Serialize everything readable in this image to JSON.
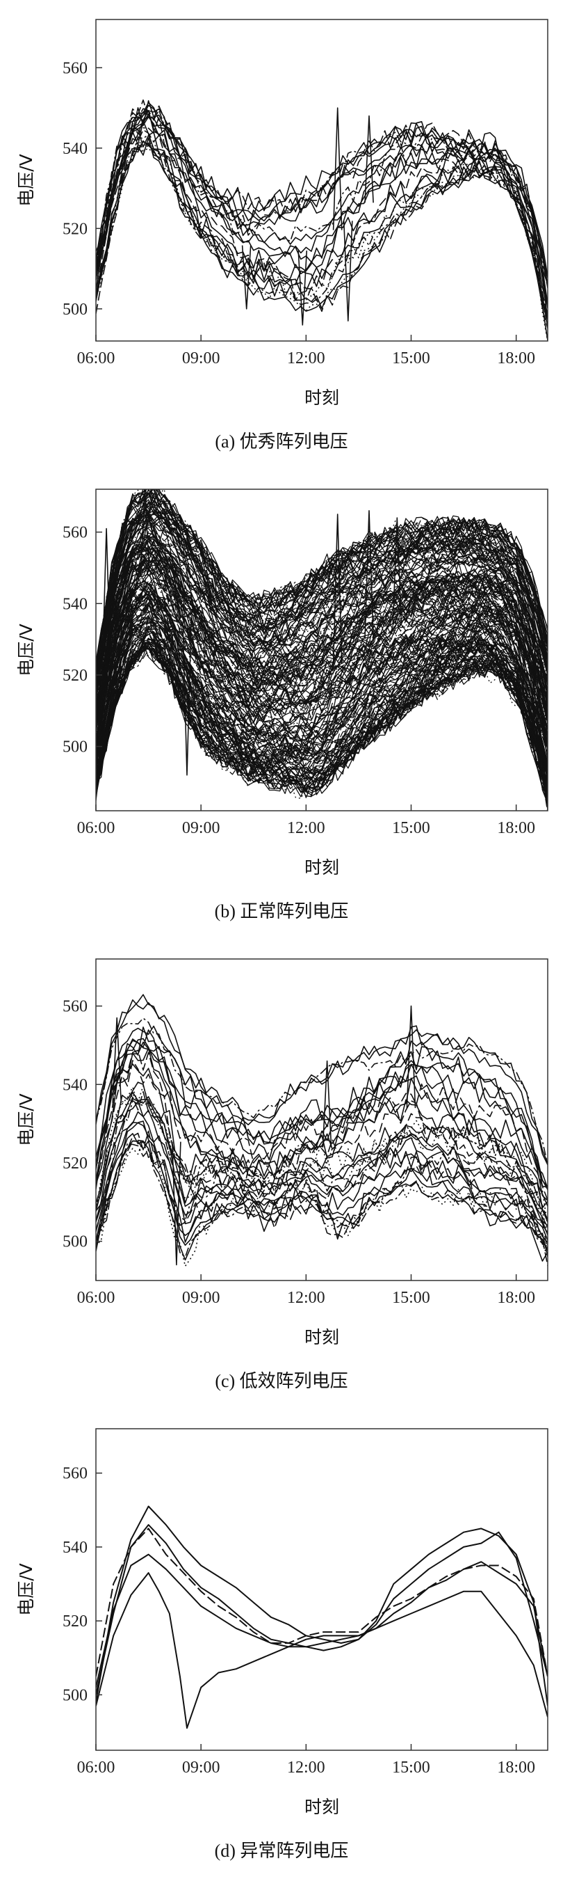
{
  "chart_data": [
    {
      "type": "line",
      "caption": "(a) 优秀阵列电压",
      "xlabel": "时刻",
      "ylabel": "电压/V",
      "xlim": [
        6.0,
        18.9
      ],
      "ylim": [
        492,
        572
      ],
      "xticks": [
        "06:00",
        "09:00",
        "12:00",
        "15:00",
        "18:00"
      ],
      "yticks": [
        "500",
        "520",
        "540",
        "560"
      ],
      "n_series": 22,
      "envelope": {
        "x": [
          6.0,
          6.5,
          7.0,
          7.5,
          8.0,
          8.5,
          9.0,
          9.5,
          10.0,
          10.5,
          11.0,
          11.5,
          12.0,
          12.5,
          13.0,
          13.5,
          14.0,
          14.5,
          15.0,
          15.5,
          16.0,
          16.5,
          17.0,
          17.5,
          18.0,
          18.5,
          18.9
        ],
        "upper": [
          512,
          536,
          547,
          550,
          546,
          540,
          533,
          530,
          527,
          526,
          528,
          529,
          531,
          533,
          536,
          538,
          541,
          543,
          544,
          544,
          543,
          542,
          541,
          540,
          536,
          525,
          510
        ],
        "lower": [
          501,
          522,
          538,
          541,
          535,
          524,
          517,
          512,
          507,
          504,
          502,
          500,
          498,
          499,
          505,
          510,
          515,
          520,
          524,
          528,
          530,
          532,
          534,
          532,
          526,
          512,
          492
        ]
      },
      "spikes": [
        {
          "x": 11.9,
          "y": 496
        },
        {
          "x": 12.9,
          "y": 550
        },
        {
          "x": 13.8,
          "y": 548
        },
        {
          "x": 10.3,
          "y": 500
        },
        {
          "x": 13.2,
          "y": 497
        }
      ]
    },
    {
      "type": "line",
      "caption": "(b) 正常阵列电压",
      "xlabel": "时刻",
      "ylabel": "电压/V",
      "xlim": [
        6.0,
        18.9
      ],
      "ylim": [
        482,
        572
      ],
      "xticks": [
        "06:00",
        "09:00",
        "12:00",
        "15:00",
        "18:00"
      ],
      "yticks": [
        "500",
        "520",
        "540",
        "560"
      ],
      "n_series": 180,
      "envelope": {
        "x": [
          6.0,
          6.5,
          7.0,
          7.5,
          8.0,
          8.5,
          9.0,
          9.5,
          10.0,
          10.5,
          11.0,
          11.5,
          12.0,
          12.5,
          13.0,
          13.5,
          14.0,
          14.5,
          15.0,
          15.5,
          16.0,
          16.5,
          17.0,
          17.5,
          18.0,
          18.5,
          18.9
        ],
        "upper": [
          522,
          552,
          568,
          572,
          569,
          563,
          556,
          548,
          543,
          540,
          541,
          543,
          546,
          550,
          553,
          556,
          558,
          560,
          561,
          562,
          562,
          562,
          562,
          560,
          556,
          545,
          530
        ],
        "lower": [
          488,
          510,
          524,
          528,
          522,
          510,
          502,
          497,
          494,
          491,
          490,
          489,
          488,
          490,
          495,
          500,
          505,
          508,
          512,
          515,
          518,
          520,
          522,
          520,
          514,
          500,
          484
        ]
      },
      "spikes": [
        {
          "x": 6.3,
          "y": 561
        },
        {
          "x": 8.6,
          "y": 492
        },
        {
          "x": 12.9,
          "y": 565
        },
        {
          "x": 13.8,
          "y": 566
        },
        {
          "x": 14.6,
          "y": 564
        },
        {
          "x": 7.4,
          "y": 572
        }
      ]
    },
    {
      "type": "line",
      "caption": "(c) 低效阵列电压",
      "xlabel": "时刻",
      "ylabel": "电压/V",
      "xlim": [
        6.0,
        18.9
      ],
      "ylim": [
        490,
        572
      ],
      "xticks": [
        "06:00",
        "09:00",
        "12:00",
        "15:00",
        "18:00"
      ],
      "yticks": [
        "500",
        "520",
        "540",
        "560"
      ],
      "n_series": 30,
      "envelope": {
        "x": [
          6.0,
          6.5,
          7.0,
          7.5,
          8.0,
          8.5,
          9.0,
          9.5,
          10.0,
          10.5,
          11.0,
          11.5,
          12.0,
          12.5,
          13.0,
          13.5,
          14.0,
          14.5,
          15.0,
          15.5,
          16.0,
          16.5,
          17.0,
          17.5,
          18.0,
          18.5,
          18.9
        ],
        "upper": [
          530,
          552,
          560,
          561,
          555,
          545,
          540,
          536,
          534,
          532,
          534,
          538,
          541,
          543,
          545,
          547,
          548,
          550,
          553,
          552,
          551,
          550,
          549,
          548,
          544,
          532,
          520
        ],
        "lower": [
          497,
          515,
          525,
          522,
          512,
          495,
          503,
          507,
          508,
          507,
          505,
          508,
          510,
          505,
          503,
          506,
          510,
          512,
          515,
          512,
          512,
          510,
          507,
          506,
          505,
          502,
          496
        ]
      },
      "spikes": [
        {
          "x": 8.3,
          "y": 494
        },
        {
          "x": 15.0,
          "y": 560
        },
        {
          "x": 12.6,
          "y": 546
        },
        {
          "x": 6.6,
          "y": 557
        }
      ]
    },
    {
      "type": "line",
      "caption": "(d) 异常阵列电压",
      "xlabel": "时刻",
      "ylabel": "电压/V",
      "xlim": [
        6.0,
        18.9
      ],
      "ylim": [
        485,
        572
      ],
      "xticks": [
        "06:00",
        "09:00",
        "12:00",
        "15:00",
        "18:00"
      ],
      "yticks": [
        "500",
        "520",
        "540",
        "560"
      ],
      "series": [
        {
          "style": "solid",
          "x": [
            6.0,
            6.5,
            7.0,
            7.5,
            8.0,
            8.5,
            9.0,
            9.5,
            10.0,
            10.5,
            11.0,
            11.5,
            12.0,
            12.5,
            13.0,
            13.5,
            14.0,
            14.5,
            15.0,
            15.5,
            16.0,
            16.5,
            17.0,
            17.5,
            18.0,
            18.5,
            18.9
          ],
          "y": [
            498,
            525,
            542,
            551,
            546,
            540,
            535,
            532,
            529,
            525,
            521,
            519,
            516,
            515,
            514,
            515,
            520,
            530,
            534,
            538,
            541,
            544,
            545,
            543,
            538,
            525,
            497
          ]
        },
        {
          "style": "solid",
          "x": [
            6.0,
            6.5,
            7.0,
            7.5,
            8.0,
            8.5,
            9.0,
            9.5,
            10.0,
            10.5,
            11.0,
            11.5,
            12.0,
            12.5,
            13.0,
            13.5,
            14.0,
            14.5,
            15.0,
            15.5,
            16.0,
            16.5,
            17.0,
            17.5,
            18.0,
            18.5,
            18.9
          ],
          "y": [
            500,
            522,
            540,
            546,
            541,
            534,
            529,
            526,
            522,
            518,
            515,
            514,
            513,
            512,
            513,
            515,
            519,
            526,
            530,
            534,
            537,
            540,
            541,
            544,
            537,
            520,
            505
          ]
        },
        {
          "style": "dashed",
          "x": [
            6.0,
            6.5,
            7.0,
            7.5,
            8.0,
            8.5,
            9.0,
            9.5,
            10.0,
            10.5,
            11.0,
            11.5,
            12.0,
            12.5,
            13.0,
            13.5,
            14.0,
            14.5,
            15.0,
            15.5,
            16.0,
            16.5,
            17.0,
            17.5,
            18.0,
            18.5,
            18.9
          ],
          "y": [
            505,
            530,
            540,
            545,
            538,
            533,
            528,
            524,
            521,
            517,
            514,
            514,
            516,
            517,
            517,
            517,
            521,
            524,
            526,
            529,
            532,
            534,
            535,
            535,
            532,
            526,
            505
          ]
        },
        {
          "style": "solid",
          "x": [
            6.0,
            6.5,
            7.0,
            7.5,
            8.0,
            8.5,
            9.0,
            9.5,
            10.0,
            10.5,
            11.0,
            11.5,
            12.0,
            12.5,
            13.0,
            13.5,
            14.0,
            14.5,
            15.0,
            15.5,
            16.0,
            16.5,
            17.0,
            17.5,
            18.0,
            18.5,
            18.9
          ],
          "y": [
            502,
            523,
            535,
            538,
            534,
            529,
            524,
            521,
            518,
            516,
            514,
            513,
            513,
            514,
            515,
            516,
            518,
            522,
            525,
            529,
            531,
            534,
            536,
            533,
            530,
            524,
            505
          ]
        },
        {
          "style": "solid",
          "x": [
            6.0,
            6.5,
            7.0,
            7.5,
            7.8,
            8.1,
            8.4,
            8.6,
            9.0,
            9.5,
            10.0,
            10.5,
            11.0,
            11.5,
            12.0,
            12.5,
            13.0,
            13.5,
            14.0,
            14.5,
            15.0,
            15.5,
            16.0,
            16.5,
            17.0,
            17.5,
            18.0,
            18.5,
            18.9
          ],
          "y": [
            497,
            516,
            527,
            533,
            528,
            522,
            505,
            491,
            502,
            506,
            507,
            509,
            511,
            513,
            515,
            516,
            516,
            516,
            518,
            520,
            522,
            524,
            526,
            528,
            528,
            522,
            516,
            508,
            494
          ]
        }
      ]
    }
  ]
}
